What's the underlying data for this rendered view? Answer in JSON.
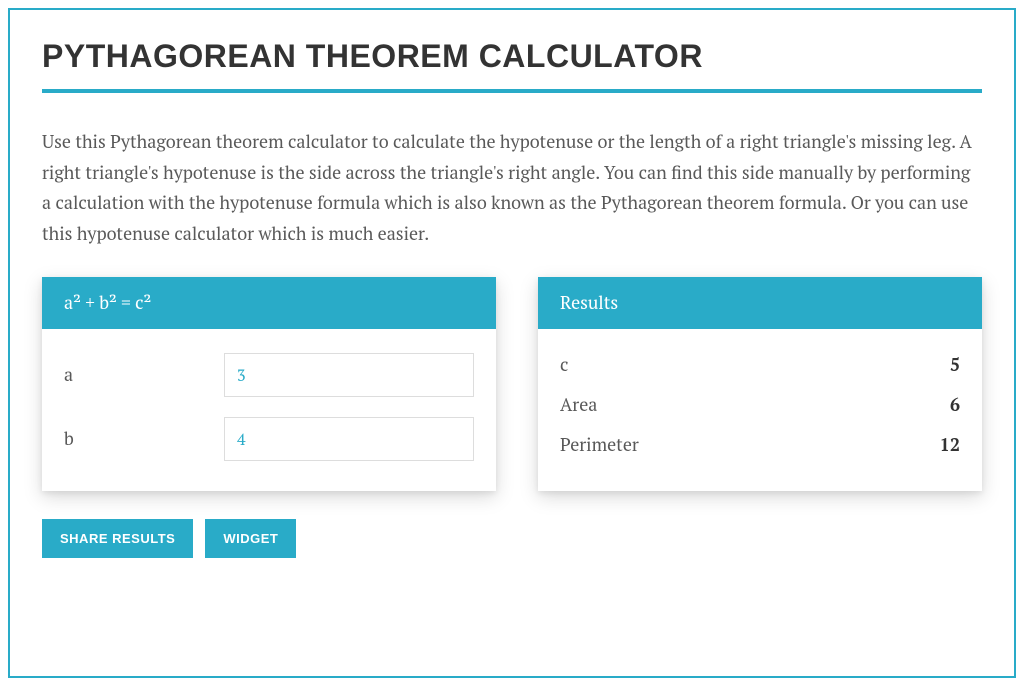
{
  "colors": {
    "accent": "#29abc8",
    "text_dark": "#333333",
    "text_body": "#595959",
    "input_border": "#dddddd",
    "background": "#ffffff"
  },
  "title": "PYTHAGOREAN THEOREM CALCULATOR",
  "description": "Use this Pythagorean theorem calculator to calculate the hypotenuse or the length of a right triangle's missing leg. A right triangle's hypotenuse is the side across the triangle's right angle. You can find this side manually by performing a calculation with the hypotenuse formula which is also known as the Pythagorean theorem formula. Or you can use this hypotenuse calculator which is much easier.",
  "input_panel": {
    "header": "a² + b² = c²",
    "fields": {
      "a": {
        "label": "a",
        "value": "3"
      },
      "b": {
        "label": "b",
        "value": "4"
      }
    }
  },
  "results_panel": {
    "header": "Results",
    "rows": {
      "c": {
        "label": "c",
        "value": "5"
      },
      "area": {
        "label": "Area",
        "value": "6"
      },
      "perimeter": {
        "label": "Perimeter",
        "value": "12"
      }
    }
  },
  "buttons": {
    "share": "SHARE RESULTS",
    "widget": "WIDGET"
  }
}
